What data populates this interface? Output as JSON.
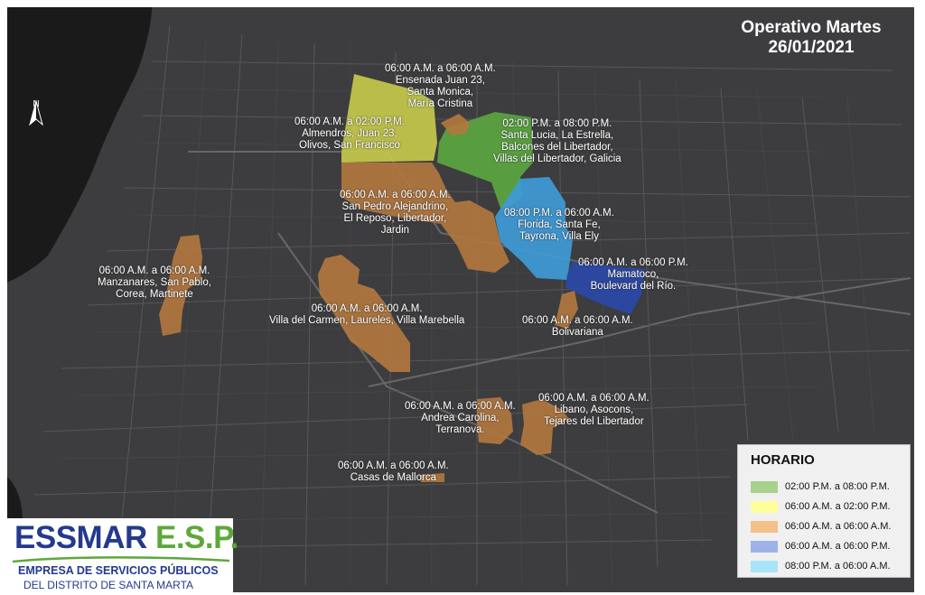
{
  "title": {
    "line1": "Operativo Martes",
    "line2": "26/01/2021"
  },
  "north_label": "N",
  "colors": {
    "water": "#1a1a1b",
    "land": "#3d3d3f",
    "road": "#5a5a5c",
    "green": "#5aa53f",
    "yellow": "#c4c84a",
    "orange": "#b4783f",
    "blue": "#2a48a8",
    "lightblue": "#3e9ad6"
  },
  "zones": [
    {
      "schedule": "06:00 A.M. a 06:00 A.M.",
      "areas": [
        "Ensenada Juan 23,",
        "Santa Monica,",
        "María Cristina"
      ]
    },
    {
      "schedule": "06:00 A.M. a 02:00 P.M.",
      "areas": [
        "Almendros, Juan 23,",
        "Olivos, San Francisco"
      ]
    },
    {
      "schedule": "02:00 P.M. a 08:00 P.M.",
      "areas": [
        "Santa Lucia, La Estrella,",
        "Balcones del Libertador,",
        "Villas del Libertador, Galicia"
      ]
    },
    {
      "schedule": "06:00 A.M. a 06:00 A.M.",
      "areas": [
        "San Pedro Alejandrino,",
        "El Reposo, Libertador,",
        "Jardin"
      ]
    },
    {
      "schedule": "08:00 P.M. a 06:00 A.M.",
      "areas": [
        "Florida, Santa Fe,",
        "Tayrona, Villa Ely"
      ]
    },
    {
      "schedule": "06:00 A.M. a 06:00 P.M.",
      "areas": [
        "Mamatoco,",
        "Boulevard del Río."
      ]
    },
    {
      "schedule": "06:00 A.M. a 06:00 A.M.",
      "areas": [
        "Manzanares, San Pablo,",
        "Corea, Martinete"
      ]
    },
    {
      "schedule": "06:00 A.M. a 06:00 A.M.",
      "areas": [
        "Villa del Carmen, Laureles, Villa Marebella"
      ]
    },
    {
      "schedule": "06:00 A.M. a 06:00 A.M.",
      "areas": [
        "Bolivariana"
      ]
    },
    {
      "schedule": "06:00 A.M. a 06:00 A.M.",
      "areas": [
        "Andrea Carolina,",
        "Terranova."
      ]
    },
    {
      "schedule": "06:00 A.M. a 06:00 A.M.",
      "areas": [
        "Libano, Asocons,",
        "Tejares del Libertador"
      ]
    },
    {
      "schedule": "06:00 A.M. a 06:00 A.M.",
      "areas": [
        "Casas de Mallorca"
      ]
    }
  ],
  "legend": {
    "title": "HORARIO",
    "items": [
      {
        "label": "02:00 P.M. a 08:00 P.M.",
        "color": "#a9d18e"
      },
      {
        "label": "06:00 A.M. a 02:00 P.M.",
        "color": "#ffff99"
      },
      {
        "label": "06:00 A.M. a 06:00 A.M.",
        "color": "#f4c08a"
      },
      {
        "label": "06:00 A.M. a 06:00 P.M.",
        "color": "#9db3e8"
      },
      {
        "label": "08:00 P.M. a 06:00 A.M.",
        "color": "#a8e4f8"
      }
    ]
  },
  "logo": {
    "main_part1": "ESSMAR",
    "main_part2": " E.S.P.",
    "subtitle1": "EMPRESA DE SERVICIOS PÚBLICOS",
    "subtitle2": "DEL DISTRITO DE SANTA MARTA"
  }
}
